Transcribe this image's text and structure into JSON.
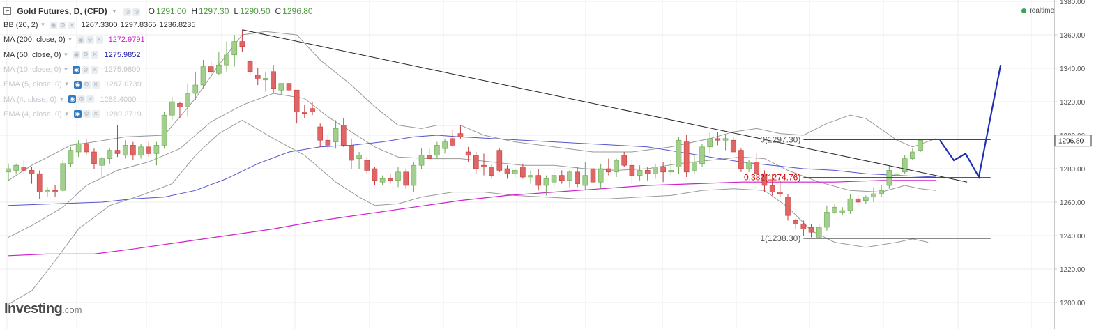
{
  "header": {
    "title": "Gold Futures, D, (CFD)",
    "ohlc": [
      {
        "label": "O",
        "value": "1291.00"
      },
      {
        "label": "H",
        "value": "1297.30"
      },
      {
        "label": "L",
        "value": "1290.50"
      },
      {
        "label": "C",
        "value": "1296.80"
      }
    ],
    "status": "realtime"
  },
  "indicators": [
    {
      "name": "BB (20, 2)",
      "values": [
        "1267.3300",
        "1297.8365",
        "1236.8235"
      ],
      "color": "#333333",
      "faded": false,
      "eye_on": false
    },
    {
      "name": "MA (200, close, 0)",
      "values": [
        "1272.9791"
      ],
      "color": "#cc22cc",
      "faded": false,
      "eye_on": false
    },
    {
      "name": "MA (50, close, 0)",
      "values": [
        "1275.9852"
      ],
      "color": "#1a1aa8",
      "faded": false,
      "eye_on": false
    },
    {
      "name": "MA (10, close, 0)",
      "values": [
        "1275.9800"
      ],
      "color": "#c3c8cd",
      "faded": true,
      "eye_on": true
    },
    {
      "name": "EMA (5, close, 0)",
      "values": [
        "1287.0739"
      ],
      "color": "#c3c8cd",
      "faded": true,
      "eye_on": true
    },
    {
      "name": "MA (4, close, 0)",
      "values": [
        "1288.4000"
      ],
      "color": "#c3c8cd",
      "faded": true,
      "eye_on": true
    },
    {
      "name": "EMA (4, close, 0)",
      "values": [
        "1289.2719"
      ],
      "color": "#c3c8cd",
      "faded": true,
      "eye_on": true
    }
  ],
  "logo": {
    "main": "Investing",
    "domain": ".com"
  },
  "chart_data": {
    "type": "candlestick",
    "y_axis": {
      "min": 1192,
      "max": 1384,
      "ticks": [
        1200,
        1220,
        1240,
        1260,
        1280,
        1300,
        1320,
        1340,
        1360,
        1380
      ],
      "tick_labels": [
        "1200.00",
        "1220.00",
        "1240.00",
        "1260.00",
        "1280.00",
        "1300.00",
        "1320.00",
        "1340.00",
        "1360.00",
        "1380.00"
      ],
      "position": "right"
    },
    "price_label": {
      "value": 1296.8,
      "text": "1296.80"
    },
    "grid": true,
    "colors": {
      "up": "#a2cf8e",
      "down": "#e06666",
      "up_border": "#6aa84f",
      "down_border": "#c63a3a",
      "bb": "#999999",
      "ma200": "#cc22cc",
      "ma50": "#5555cc",
      "trendline": "#222222",
      "projection": "#1f2fb0",
      "fib": "#333333",
      "fib_red": "#cc0000"
    },
    "candles": [
      [
        1278,
        1283,
        1273,
        1280
      ],
      [
        1279,
        1283,
        1277,
        1282
      ],
      [
        1281,
        1285,
        1277,
        1279
      ],
      [
        1279,
        1281,
        1271,
        1277
      ],
      [
        1277,
        1279,
        1262,
        1266
      ],
      [
        1266,
        1269,
        1263,
        1267
      ],
      [
        1267,
        1270,
        1263,
        1266
      ],
      [
        1267,
        1285,
        1266,
        1283
      ],
      [
        1283,
        1293,
        1281,
        1291
      ],
      [
        1290,
        1297,
        1287,
        1295
      ],
      [
        1295,
        1298,
        1288,
        1290
      ],
      [
        1290,
        1292,
        1280,
        1283
      ],
      [
        1282,
        1287,
        1274,
        1286
      ],
      [
        1286,
        1292,
        1283,
        1291
      ],
      [
        1291,
        1306,
        1287,
        1289
      ],
      [
        1288,
        1297,
        1286,
        1294
      ],
      [
        1294,
        1296,
        1285,
        1288
      ],
      [
        1288,
        1295,
        1286,
        1293
      ],
      [
        1293,
        1296,
        1287,
        1289
      ],
      [
        1289,
        1296,
        1282,
        1294
      ],
      [
        1294,
        1314,
        1292,
        1312
      ],
      [
        1312,
        1323,
        1309,
        1320
      ],
      [
        1319,
        1320,
        1310,
        1317
      ],
      [
        1317,
        1331,
        1311,
        1325
      ],
      [
        1325,
        1338,
        1321,
        1330
      ],
      [
        1330,
        1345,
        1328,
        1341
      ],
      [
        1341,
        1344,
        1335,
        1338
      ],
      [
        1337,
        1350,
        1336,
        1342
      ],
      [
        1342,
        1356,
        1338,
        1348
      ],
      [
        1348,
        1360,
        1341,
        1356
      ],
      [
        1356,
        1363,
        1350,
        1353
      ],
      [
        1344,
        1346,
        1336,
        1338
      ],
      [
        1336,
        1340,
        1330,
        1334
      ],
      [
        1333,
        1338,
        1326,
        1334
      ],
      [
        1338,
        1342,
        1325,
        1328
      ],
      [
        1327,
        1331,
        1324,
        1331
      ],
      [
        1331,
        1339,
        1324,
        1327
      ],
      [
        1327,
        1327,
        1307,
        1314
      ],
      [
        1314,
        1318,
        1310,
        1313
      ],
      [
        1316,
        1320,
        1312,
        1314
      ],
      [
        1305,
        1307,
        1293,
        1297
      ],
      [
        1297,
        1300,
        1291,
        1294
      ],
      [
        1296,
        1309,
        1292,
        1304
      ],
      [
        1306,
        1310,
        1293,
        1294
      ],
      [
        1294,
        1298,
        1280,
        1285
      ],
      [
        1286,
        1290,
        1280,
        1288
      ],
      [
        1285,
        1287,
        1277,
        1279
      ],
      [
        1280,
        1281,
        1270,
        1273
      ],
      [
        1272,
        1276,
        1270,
        1274
      ],
      [
        1274,
        1277,
        1271,
        1273
      ],
      [
        1273,
        1281,
        1269,
        1278
      ],
      [
        1278,
        1280,
        1268,
        1270
      ],
      [
        1270,
        1284,
        1266,
        1282
      ],
      [
        1282,
        1292,
        1280,
        1288
      ],
      [
        1288,
        1292,
        1286,
        1286
      ],
      [
        1288,
        1296,
        1286,
        1294
      ],
      [
        1292,
        1298,
        1289,
        1296
      ],
      [
        1298,
        1303,
        1293,
        1294
      ],
      [
        1301,
        1306,
        1298,
        1299
      ],
      [
        1290,
        1293,
        1284,
        1288
      ],
      [
        1288,
        1290,
        1277,
        1280
      ],
      [
        1282,
        1289,
        1276,
        1281
      ],
      [
        1281,
        1283,
        1274,
        1276
      ],
      [
        1291,
        1292,
        1278,
        1279
      ],
      [
        1280,
        1282,
        1274,
        1277
      ],
      [
        1277,
        1280,
        1275,
        1279
      ],
      [
        1281,
        1283,
        1274,
        1275
      ],
      [
        1275,
        1279,
        1271,
        1276
      ],
      [
        1276,
        1280,
        1267,
        1270
      ],
      [
        1270,
        1276,
        1264,
        1274
      ],
      [
        1272,
        1279,
        1268,
        1276
      ],
      [
        1276,
        1279,
        1271,
        1273
      ],
      [
        1273,
        1279,
        1269,
        1278
      ],
      [
        1278,
        1281,
        1269,
        1271
      ],
      [
        1270,
        1284,
        1267,
        1276
      ],
      [
        1280,
        1282,
        1271,
        1272
      ],
      [
        1272,
        1283,
        1268,
        1280
      ],
      [
        1280,
        1286,
        1276,
        1278
      ],
      [
        1278,
        1286,
        1275,
        1285
      ],
      [
        1288,
        1290,
        1281,
        1282
      ],
      [
        1282,
        1285,
        1271,
        1276
      ],
      [
        1276,
        1282,
        1273,
        1279
      ],
      [
        1279,
        1281,
        1273,
        1277
      ],
      [
        1277,
        1283,
        1274,
        1281
      ],
      [
        1281,
        1284,
        1272,
        1278
      ],
      [
        1278,
        1285,
        1276,
        1279
      ],
      [
        1281,
        1299,
        1277,
        1297
      ],
      [
        1296,
        1300,
        1275,
        1278
      ],
      [
        1279,
        1288,
        1277,
        1284
      ],
      [
        1283,
        1295,
        1281,
        1293
      ],
      [
        1293,
        1302,
        1289,
        1298
      ],
      [
        1298,
        1302,
        1294,
        1297
      ],
      [
        1297,
        1300,
        1291,
        1298
      ],
      [
        1297,
        1299,
        1290,
        1290
      ],
      [
        1291,
        1292,
        1278,
        1280
      ],
      [
        1280,
        1285,
        1278,
        1284
      ],
      [
        1284,
        1289,
        1275,
        1277
      ],
      [
        1277,
        1279,
        1266,
        1270
      ],
      [
        1270,
        1277,
        1264,
        1266
      ],
      [
        1266,
        1273,
        1263,
        1265
      ],
      [
        1263,
        1265,
        1249,
        1252
      ],
      [
        1249,
        1250,
        1244,
        1247
      ],
      [
        1247,
        1249,
        1240,
        1244
      ],
      [
        1245,
        1247,
        1239,
        1242
      ],
      [
        1239,
        1247,
        1238,
        1245
      ],
      [
        1245,
        1258,
        1243,
        1254
      ],
      [
        1254,
        1259,
        1253,
        1257
      ],
      [
        1254,
        1257,
        1252,
        1255
      ],
      [
        1255,
        1265,
        1253,
        1262
      ],
      [
        1262,
        1264,
        1258,
        1260
      ],
      [
        1261,
        1264,
        1259,
        1263
      ],
      [
        1263,
        1269,
        1260,
        1265
      ],
      [
        1265,
        1270,
        1263,
        1267
      ],
      [
        1270,
        1282,
        1268,
        1279
      ],
      [
        1276,
        1279,
        1275,
        1277
      ],
      [
        1278,
        1288,
        1277,
        1286
      ],
      [
        1286,
        1292,
        1285,
        1290
      ],
      [
        1291,
        1297,
        1290,
        1297
      ]
    ],
    "bb_upper": [
      [
        0,
        1273
      ],
      [
        3,
        1282
      ],
      [
        8,
        1294
      ],
      [
        11,
        1296
      ],
      [
        15,
        1299
      ],
      [
        20,
        1300
      ],
      [
        24,
        1322
      ],
      [
        27,
        1342
      ],
      [
        30,
        1360
      ],
      [
        33,
        1362
      ],
      [
        37,
        1360
      ],
      [
        40,
        1345
      ],
      [
        44,
        1330
      ],
      [
        47,
        1317
      ],
      [
        50,
        1306
      ],
      [
        53,
        1304
      ],
      [
        55,
        1306
      ],
      [
        58,
        1306
      ],
      [
        61,
        1300
      ],
      [
        65,
        1296
      ],
      [
        70,
        1293
      ],
      [
        75,
        1290
      ],
      [
        80,
        1290
      ],
      [
        85,
        1293
      ],
      [
        90,
        1298
      ],
      [
        93,
        1302
      ],
      [
        96,
        1304
      ],
      [
        99,
        1301
      ],
      [
        102,
        1300
      ],
      [
        105,
        1307
      ],
      [
        108,
        1312
      ],
      [
        110,
        1310
      ],
      [
        114,
        1297
      ],
      [
        116,
        1293
      ],
      [
        119,
        1298
      ]
    ],
    "bb_middle": [
      [
        0,
        1239
      ],
      [
        3,
        1246
      ],
      [
        7,
        1257
      ],
      [
        10,
        1270
      ],
      [
        14,
        1279
      ],
      [
        18,
        1284
      ],
      [
        22,
        1292
      ],
      [
        26,
        1308
      ],
      [
        30,
        1318
      ],
      [
        34,
        1325
      ],
      [
        38,
        1322
      ],
      [
        41,
        1311
      ],
      [
        44,
        1302
      ],
      [
        47,
        1293
      ],
      [
        50,
        1287
      ],
      [
        54,
        1286
      ],
      [
        58,
        1286
      ],
      [
        62,
        1284
      ],
      [
        66,
        1282
      ],
      [
        70,
        1282
      ],
      [
        74,
        1280
      ],
      [
        78,
        1279
      ],
      [
        82,
        1280
      ],
      [
        86,
        1283
      ],
      [
        90,
        1285
      ],
      [
        94,
        1287
      ],
      [
        97,
        1286
      ],
      [
        100,
        1279
      ],
      [
        104,
        1272
      ],
      [
        108,
        1267
      ],
      [
        112,
        1266
      ],
      [
        115,
        1270
      ],
      [
        117,
        1268
      ],
      [
        119,
        1267
      ]
    ],
    "bb_lower": [
      [
        0,
        1199
      ],
      [
        3,
        1207
      ],
      [
        6,
        1225
      ],
      [
        9,
        1244
      ],
      [
        13,
        1258
      ],
      [
        17,
        1264
      ],
      [
        21,
        1271
      ],
      [
        24,
        1288
      ],
      [
        27,
        1301
      ],
      [
        30,
        1309
      ],
      [
        34,
        1298
      ],
      [
        38,
        1288
      ],
      [
        42,
        1272
      ],
      [
        45,
        1263
      ],
      [
        47,
        1258
      ],
      [
        50,
        1259
      ],
      [
        53,
        1263
      ],
      [
        57,
        1266
      ],
      [
        61,
        1266
      ],
      [
        65,
        1264
      ],
      [
        69,
        1263
      ],
      [
        73,
        1262
      ],
      [
        77,
        1262
      ],
      [
        81,
        1263
      ],
      [
        85,
        1264
      ],
      [
        89,
        1267
      ],
      [
        93,
        1268
      ],
      [
        97,
        1267
      ],
      [
        100,
        1257
      ],
      [
        103,
        1243
      ],
      [
        106,
        1236
      ],
      [
        110,
        1233
      ],
      [
        114,
        1236
      ],
      [
        116,
        1238
      ],
      [
        118,
        1236
      ]
    ],
    "ma50": [
      [
        0,
        1258
      ],
      [
        6,
        1259
      ],
      [
        12,
        1260
      ],
      [
        16,
        1262
      ],
      [
        20,
        1263
      ],
      [
        24,
        1267
      ],
      [
        28,
        1274
      ],
      [
        32,
        1283
      ],
      [
        36,
        1290
      ],
      [
        40,
        1293
      ],
      [
        44,
        1294
      ],
      [
        48,
        1296
      ],
      [
        52,
        1299
      ],
      [
        55,
        1300
      ],
      [
        58,
        1299
      ],
      [
        62,
        1298
      ],
      [
        66,
        1297
      ],
      [
        70,
        1296
      ],
      [
        74,
        1295
      ],
      [
        78,
        1294
      ],
      [
        82,
        1293
      ],
      [
        86,
        1290
      ],
      [
        90,
        1287
      ],
      [
        94,
        1284
      ],
      [
        98,
        1282
      ],
      [
        102,
        1280
      ],
      [
        106,
        1279
      ],
      [
        110,
        1277
      ],
      [
        114,
        1276
      ],
      [
        119,
        1275
      ]
    ],
    "ma200": [
      [
        0,
        1228
      ],
      [
        5,
        1229
      ],
      [
        11,
        1229
      ],
      [
        16,
        1232
      ],
      [
        22,
        1236
      ],
      [
        28,
        1240
      ],
      [
        34,
        1244
      ],
      [
        40,
        1249
      ],
      [
        46,
        1253
      ],
      [
        52,
        1257
      ],
      [
        58,
        1261
      ],
      [
        64,
        1264
      ],
      [
        70,
        1266
      ],
      [
        76,
        1268
      ],
      [
        82,
        1270
      ],
      [
        88,
        1271
      ],
      [
        94,
        1272
      ],
      [
        100,
        1272
      ],
      [
        106,
        1272
      ],
      [
        112,
        1273
      ],
      [
        119,
        1273
      ]
    ],
    "trendline": {
      "from": [
        30,
        1363
      ],
      "to": [
        123,
        1272
      ]
    },
    "projection": [
      [
        119.5,
        1297
      ],
      [
        121.3,
        1285
      ],
      [
        122.8,
        1289
      ],
      [
        124.5,
        1275
      ],
      [
        127.3,
        1342
      ]
    ],
    "fib": {
      "levels": [
        {
          "label": "0(1297.30)",
          "value": 1297.3
        },
        {
          "label": "0.382(1274.76)",
          "value": 1274.76,
          "accent": true
        },
        {
          "label": "1(1238.30)",
          "value": 1238.3
        }
      ],
      "from_index": 102,
      "to_index": 126
    }
  }
}
